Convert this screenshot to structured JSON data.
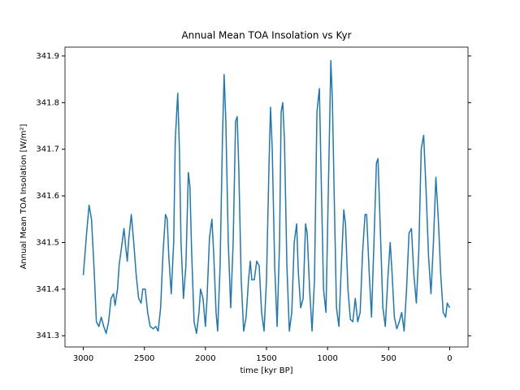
{
  "chart_data": {
    "type": "line",
    "title": "Annual Mean TOA Insolation vs Kyr",
    "xlabel": "time [kyr BP]",
    "ylabel": "Annual Mean TOA Insolation [W/m²]",
    "xlim": [
      3150,
      -150
    ],
    "ylim": [
      341.276,
      341.919
    ],
    "xticks": [
      3000,
      2500,
      2000,
      1500,
      1000,
      500,
      0
    ],
    "yticks": [
      341.3,
      341.4,
      341.5,
      341.6,
      341.7,
      341.8,
      341.9
    ],
    "x": [
      3000,
      2973,
      2953,
      2933,
      2913,
      2893,
      2873,
      2853,
      2833,
      2813,
      2793,
      2773,
      2753,
      2740,
      2720,
      2707,
      2687,
      2667,
      2653,
      2640,
      2627,
      2607,
      2587,
      2567,
      2547,
      2527,
      2513,
      2493,
      2473,
      2453,
      2427,
      2407,
      2387,
      2367,
      2347,
      2327,
      2313,
      2300,
      2280,
      2260,
      2247,
      2227,
      2213,
      2200,
      2180,
      2160,
      2140,
      2127,
      2113,
      2093,
      2073,
      2053,
      2040,
      2020,
      2000,
      1987,
      1967,
      1947,
      1933,
      1913,
      1900,
      1880,
      1860,
      1847,
      1833,
      1813,
      1793,
      1773,
      1753,
      1740,
      1727,
      1707,
      1687,
      1667,
      1647,
      1633,
      1620,
      1600,
      1580,
      1560,
      1540,
      1520,
      1500,
      1480,
      1467,
      1453,
      1433,
      1413,
      1393,
      1380,
      1367,
      1353,
      1333,
      1313,
      1293,
      1273,
      1253,
      1240,
      1220,
      1200,
      1180,
      1167,
      1147,
      1127,
      1107,
      1087,
      1067,
      1053,
      1033,
      1013,
      993,
      973,
      960,
      947,
      927,
      907,
      887,
      867,
      853,
      833,
      813,
      793,
      773,
      753,
      733,
      713,
      693,
      680,
      660,
      640,
      620,
      600,
      587,
      567,
      547,
      527,
      507,
      487,
      473,
      453,
      433,
      413,
      393,
      373,
      353,
      333,
      313,
      293,
      273,
      253,
      233,
      213,
      193,
      173,
      153,
      133,
      113,
      93,
      73,
      53,
      33,
      20,
      0
    ],
    "series": [
      {
        "color": "#1f77b4",
        "values": [
          341.43,
          341.52,
          341.58,
          341.55,
          341.45,
          341.33,
          341.32,
          341.34,
          341.32,
          341.305,
          341.33,
          341.38,
          341.39,
          341.365,
          341.4,
          341.45,
          341.49,
          341.53,
          341.49,
          341.46,
          341.51,
          341.56,
          341.5,
          341.43,
          341.38,
          341.37,
          341.4,
          341.4,
          341.35,
          341.32,
          341.315,
          341.32,
          341.31,
          341.36,
          341.48,
          341.56,
          341.55,
          341.47,
          341.39,
          341.5,
          341.72,
          341.82,
          341.7,
          341.5,
          341.38,
          341.45,
          341.65,
          341.62,
          341.48,
          341.33,
          341.305,
          341.35,
          341.4,
          341.38,
          341.32,
          341.38,
          341.51,
          341.55,
          341.48,
          341.35,
          341.31,
          341.45,
          341.73,
          341.86,
          341.76,
          341.5,
          341.36,
          341.5,
          341.76,
          341.77,
          341.66,
          341.42,
          341.31,
          341.34,
          341.42,
          341.46,
          341.42,
          341.42,
          341.46,
          341.45,
          341.35,
          341.31,
          341.42,
          341.66,
          341.79,
          341.7,
          341.45,
          341.32,
          341.5,
          341.78,
          341.8,
          341.72,
          341.45,
          341.31,
          341.35,
          341.5,
          341.54,
          341.44,
          341.36,
          341.38,
          341.54,
          341.52,
          341.4,
          341.31,
          341.42,
          341.78,
          341.83,
          341.65,
          341.4,
          341.35,
          341.62,
          341.89,
          341.8,
          341.62,
          341.36,
          341.32,
          341.45,
          341.57,
          341.54,
          341.4,
          341.335,
          341.33,
          341.38,
          341.33,
          341.35,
          341.48,
          341.56,
          341.56,
          341.44,
          341.34,
          341.5,
          341.67,
          341.68,
          341.52,
          341.36,
          341.32,
          341.42,
          341.5,
          341.44,
          341.34,
          341.315,
          341.33,
          341.35,
          341.31,
          341.4,
          341.52,
          341.53,
          341.43,
          341.37,
          341.48,
          341.7,
          341.73,
          341.61,
          341.47,
          341.39,
          341.5,
          341.64,
          341.55,
          341.43,
          341.35,
          341.34,
          341.37,
          341.36
        ]
      }
    ]
  }
}
